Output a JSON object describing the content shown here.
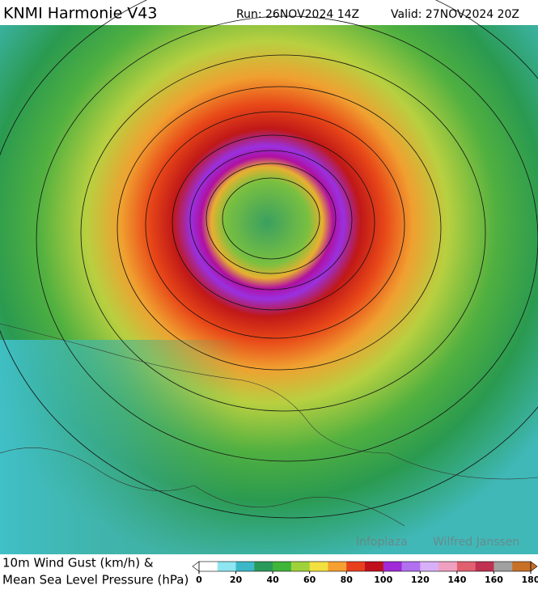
{
  "header": {
    "title": "KNMI Harmonie V43",
    "run": "Run: 26NOV2024 14Z",
    "valid": "Valid: 27NOV2024 20Z"
  },
  "footer": {
    "line1": "10m Wind Gust (km/h) &",
    "line2": "Mean Sea Level Pressure (hPa)"
  },
  "watermark": {
    "org": "Infoplaza",
    "author": "Wilfred Janssen"
  },
  "colorbar": {
    "lim": [
      0,
      180
    ],
    "ticks": [
      0,
      20,
      40,
      60,
      80,
      100,
      120,
      140,
      160,
      180
    ],
    "colors": [
      "#ffffff",
      "#8fe6f0",
      "#3cb8c8",
      "#2a9a5a",
      "#3fb53a",
      "#9fd23a",
      "#f2e040",
      "#f5a030",
      "#e8401c",
      "#c0101c",
      "#a02ad8",
      "#b070f0",
      "#d8b0f8",
      "#f0a0c0",
      "#e06070",
      "#c03050",
      "#a0a0a0",
      "#c87028"
    ]
  }
}
